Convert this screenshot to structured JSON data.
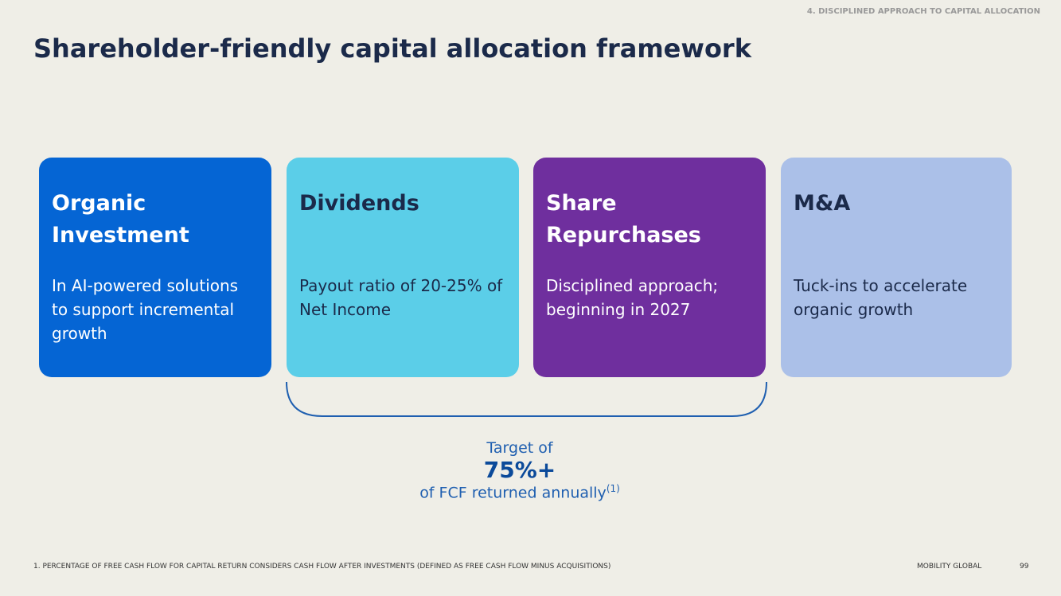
{
  "header": {
    "section": "4. DISCIPLINED APPROACH TO CAPITAL ALLOCATION",
    "title": "Shareholder-friendly capital allocation framework"
  },
  "cards": [
    {
      "title": "Organic Investment",
      "body": "In AI-powered solutions to support incremental growth"
    },
    {
      "title": "Dividends",
      "body": "Payout ratio of 20-25% of Net Income"
    },
    {
      "title": "Share Repurchases",
      "body": "Disciplined approach; beginning in 2027"
    },
    {
      "title": "M&A",
      "body": "Tuck-ins to accelerate organic growth"
    }
  ],
  "target": {
    "line1": "Target of",
    "value": "75%+",
    "line3": "of FCF returned annually",
    "note": "(1)"
  },
  "footer": {
    "footnote": "1. PERCENTAGE OF FREE CASH FLOW FOR CAPITAL RETURN CONSIDERS CASH FLOW AFTER INVESTMENTS (DEFINED AS FREE CASH FLOW MINUS ACQUISITIONS)",
    "brand": "MOBILITY GLOBAL",
    "page": "99"
  }
}
